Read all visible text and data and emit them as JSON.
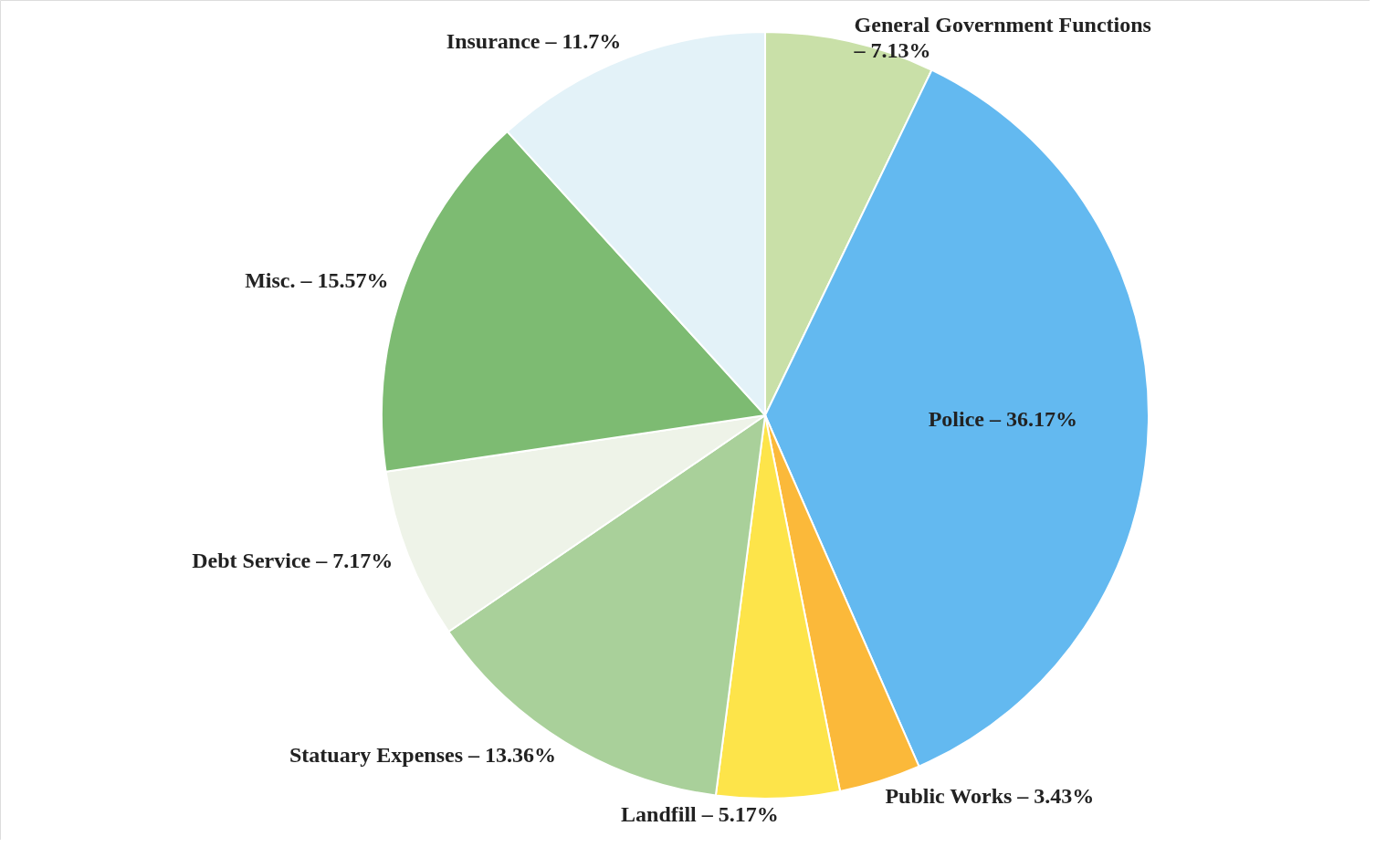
{
  "chart_data": {
    "type": "pie",
    "categories": [
      "General Government Functions – 7.13%",
      "Police – 36.17%",
      "Public Works – 3.43%",
      "Landfill – 5.17%",
      "Statuary Expenses – 13.36%",
      "Debt Service – 7.17%",
      "Misc. – 15.57%",
      "Insurance – 11.7%"
    ],
    "values": [
      7.13,
      36.17,
      3.43,
      5.17,
      13.36,
      7.17,
      15.57,
      11.7
    ],
    "colors": [
      "#c9e0a8",
      "#63b9f0",
      "#fbb93a",
      "#fde44a",
      "#a9d09a",
      "#eef3e8",
      "#7dbb72",
      "#e3f2f8"
    ],
    "legend": false
  }
}
